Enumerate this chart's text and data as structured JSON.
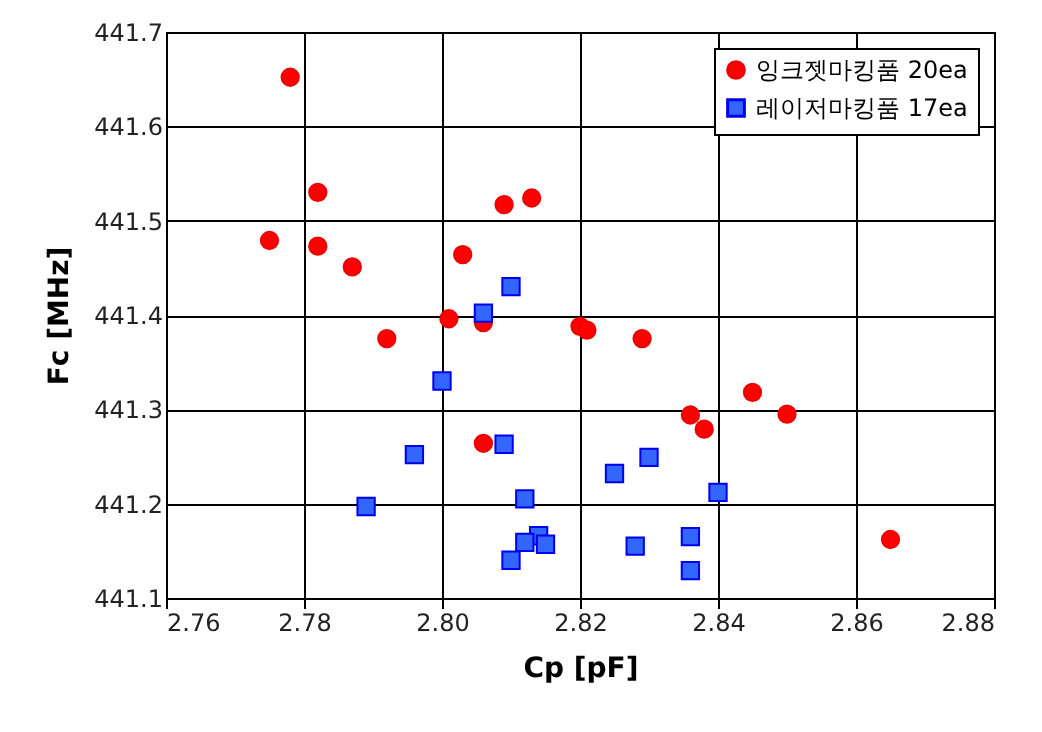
{
  "chart_data": {
    "type": "scatter",
    "xlabel": "Cp [pF]",
    "ylabel": "Fc [MHz]",
    "xlim": [
      2.76,
      2.88
    ],
    "xticks": [
      {
        "value": 2.76,
        "label": "2.76"
      },
      {
        "value": 2.78,
        "label": "2.78"
      },
      {
        "value": 2.8,
        "label": "2.80"
      },
      {
        "value": 2.82,
        "label": "2.82"
      },
      {
        "value": 2.84,
        "label": "2.84"
      },
      {
        "value": 2.86,
        "label": "2.86"
      },
      {
        "value": 2.88,
        "label": "2.88"
      }
    ],
    "ylim": [
      441.1,
      441.7
    ],
    "yticks": [
      441.1,
      441.2,
      441.3,
      441.4,
      441.5,
      441.6,
      441.7
    ],
    "grid": true,
    "legend": "top right",
    "series": [
      {
        "name": "잉크젯마킹품 20ea",
        "color": "#ff0000",
        "marker": "circle",
        "x": [
          2.778,
          2.782,
          2.809,
          2.813,
          2.775,
          2.782,
          2.787,
          2.803,
          2.801,
          2.806,
          2.792,
          2.82,
          2.821,
          2.806,
          2.829,
          2.845,
          2.836,
          2.838,
          2.85,
          2.865
        ],
        "values": [
          441.652,
          441.53,
          441.517,
          441.524,
          441.479,
          441.473,
          441.451,
          441.464,
          441.396,
          441.392,
          441.375,
          441.388,
          441.384,
          441.264,
          441.375,
          441.318,
          441.294,
          441.279,
          441.295,
          441.162
        ]
      },
      {
        "name": "레이저마킹품 17ea",
        "color": "#3366ff",
        "marker": "square",
        "x": [
          2.81,
          2.806,
          2.8,
          2.809,
          2.796,
          2.789,
          2.812,
          2.814,
          2.812,
          2.815,
          2.81,
          2.83,
          2.825,
          2.84,
          2.828,
          2.836,
          2.836
        ],
        "values": [
          441.43,
          441.402,
          441.33,
          441.263,
          441.252,
          441.197,
          441.205,
          441.166,
          441.159,
          441.157,
          441.14,
          441.249,
          441.232,
          441.212,
          441.155,
          441.165,
          441.129
        ]
      }
    ]
  }
}
